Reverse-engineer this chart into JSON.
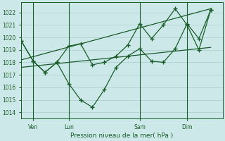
{
  "background_color": "#cce8e8",
  "grid_color": "#aacece",
  "line_color": "#1a5c2a",
  "text_color": "#1a5c2a",
  "xlabel": "Pression niveau de la mer( hPa )",
  "ylim": [
    1013.5,
    1022.8
  ],
  "yticks": [
    1014,
    1015,
    1016,
    1017,
    1018,
    1019,
    1020,
    1021,
    1022
  ],
  "xtick_labels": [
    "Ven",
    "Lun",
    "Sam",
    "Dim"
  ],
  "xtick_positions": [
    1,
    4,
    10,
    14
  ],
  "vlines": [
    1,
    4,
    10,
    14
  ],
  "xlim": [
    0,
    17
  ],
  "series1_x": [
    0,
    1,
    2,
    3,
    4,
    5,
    6,
    7,
    8,
    9,
    10,
    11,
    12,
    13,
    14,
    15,
    16
  ],
  "series1_y": [
    1019.7,
    1018.1,
    1017.2,
    1018.0,
    1019.3,
    1019.5,
    1017.8,
    1018.0,
    1018.5,
    1019.4,
    1021.1,
    1019.9,
    1021.0,
    1022.3,
    1021.0,
    1019.0,
    1022.2
  ],
  "series2_x": [
    0,
    1,
    2,
    3,
    4,
    5,
    6,
    7,
    8,
    9,
    10,
    11,
    12,
    13,
    14,
    15,
    16
  ],
  "series2_y": [
    1019.7,
    1018.1,
    1017.2,
    1018.0,
    1016.3,
    1015.0,
    1014.4,
    1015.8,
    1017.6,
    1018.5,
    1019.1,
    1018.1,
    1018.0,
    1019.1,
    1021.1,
    1019.9,
    1022.2
  ],
  "trend1_x": [
    0,
    16
  ],
  "trend1_y": [
    1017.6,
    1019.2
  ],
  "trend2_x": [
    0,
    16
  ],
  "trend2_y": [
    1018.2,
    1022.3
  ]
}
